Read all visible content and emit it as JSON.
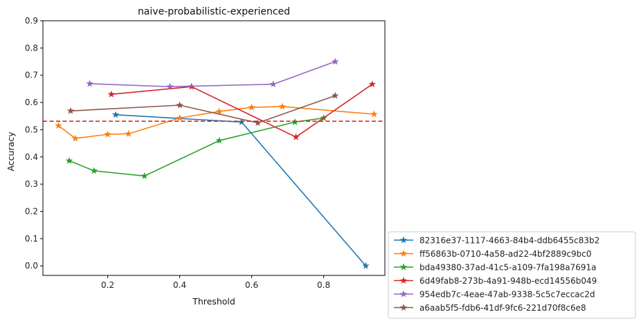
{
  "chart_data": {
    "type": "line",
    "title": "naive-probabilistic-experienced",
    "xlabel": "Threshold",
    "ylabel": "Accuracy",
    "xlim": [
      0.02,
      0.97
    ],
    "ylim": [
      -0.035,
      0.9
    ],
    "xticks": [
      0.2,
      0.4,
      0.6,
      0.8
    ],
    "xtick_labels": [
      "0.2",
      "0.4",
      "0.6",
      "0.8"
    ],
    "yticks": [
      0.0,
      0.1,
      0.2,
      0.3,
      0.4,
      0.5,
      0.6,
      0.7,
      0.8,
      0.9
    ],
    "ytick_labels": [
      "0.0",
      "0.1",
      "0.2",
      "0.3",
      "0.4",
      "0.5",
      "0.6",
      "0.7",
      "0.8",
      "0.9"
    ],
    "grid": false,
    "marker": "star",
    "legend_position": "outside-lower-right",
    "reference_line": {
      "y": 0.531,
      "color": "#d62728",
      "style": "dashed"
    },
    "series": [
      {
        "name": "82316e37-1117-4663-84b4-ddb6455c83b2",
        "color": "#1f77b4",
        "x": [
          0.222,
          0.572,
          0.917
        ],
        "y": [
          0.555,
          0.528,
          0.0
        ]
      },
      {
        "name": "ff56863b-0710-4a58-ad22-4bf2889c9bc0",
        "color": "#ff7f0e",
        "x": [
          0.063,
          0.11,
          0.2,
          0.258,
          0.4,
          0.51,
          0.6,
          0.685,
          0.94
        ],
        "y": [
          0.515,
          0.468,
          0.483,
          0.485,
          0.543,
          0.567,
          0.582,
          0.585,
          0.557
        ]
      },
      {
        "name": "bda49380-37ad-41c5-a109-7fa198a7691a",
        "color": "#2ca02c",
        "x": [
          0.093,
          0.162,
          0.302,
          0.51,
          0.72,
          0.8
        ],
        "y": [
          0.386,
          0.349,
          0.33,
          0.46,
          0.528,
          0.543
        ]
      },
      {
        "name": "6d49fab8-273b-4a91-948b-ecd14556b049",
        "color": "#d62728",
        "x": [
          0.21,
          0.433,
          0.723,
          0.935
        ],
        "y": [
          0.63,
          0.658,
          0.473,
          0.667
        ]
      },
      {
        "name": "954edb7c-4eae-47ab-9338-5c5c7eccac2d",
        "color": "#9467bd",
        "x": [
          0.15,
          0.373,
          0.66,
          0.832
        ],
        "y": [
          0.669,
          0.658,
          0.667,
          0.75
        ]
      },
      {
        "name": "a6aab5f5-fdb6-41df-9fc6-221d70f8c6e8",
        "color": "#8c564b",
        "x": [
          0.097,
          0.4,
          0.617,
          0.832
        ],
        "y": [
          0.569,
          0.59,
          0.525,
          0.625
        ]
      }
    ]
  }
}
